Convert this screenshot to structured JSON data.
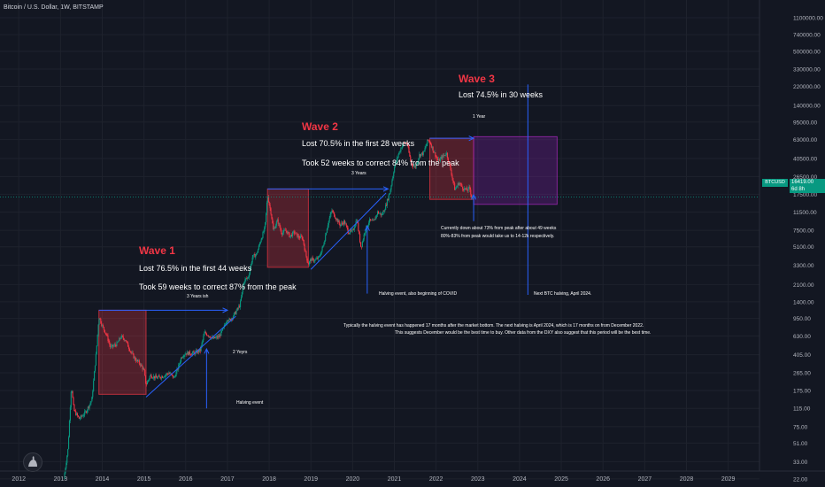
{
  "header": {
    "title": "Bitcoin / U.S. Dollar, 1W, BITSTAMP"
  },
  "price_badge": {
    "symbol": "BTCUSD",
    "price": "16419.00",
    "countdown": "6d 8h"
  },
  "annotations": {
    "wave1": {
      "title": "Wave 1",
      "line1": "Lost 76.5% in the first 44 weeks",
      "line2": "Took 59 weeks to correct 87% from the peak",
      "span_label": "3 Years ish",
      "trend_label": "2 Yeyrs",
      "event_label": "Halving event"
    },
    "wave2": {
      "title": "Wave 2",
      "line1": "Lost 70.5% in the first 28 weeks",
      "line2": "Took 52 weeks to correct 84% from the peak",
      "span_label": "3 Years",
      "event_label": "Halving event, also beginning of COVID"
    },
    "wave3": {
      "title": "Wave 3",
      "line1": "Lost 74.5% in 30 weeks",
      "span_label": "1 Year"
    },
    "current_note_1": "Currently down about 73% from peak after about 49 weeks",
    "current_note_2": "80%-83% from peak would take us to 14-12k respectively.",
    "next_halving": "Next BTC halving, April 2024.",
    "summary_1": "Typically the halving event has happened 17 months after the market bottom. The next halving is April 2024, which is 17 months on from December 2022.",
    "summary_2": "This suggests December would be the best time to buy. Other data from the DXY also suggest that this period will be the best time."
  },
  "colors": {
    "background": "#131722",
    "up": "#089981",
    "down": "#f23645",
    "wave_box": "#f23645",
    "projection_box": "#7b1fa2",
    "arrow": "#2962ff",
    "price_line": "#089981",
    "grid": "#1e222d"
  },
  "chart_data": {
    "type": "candlestick",
    "title": "Bitcoin / U.S. Dollar, 1W, BITSTAMP",
    "y_scale": "log",
    "ylim": [
      27,
      1100000
    ],
    "xlim": [
      2011.55,
      2029.75
    ],
    "x_ticks": [
      "2012",
      "2013",
      "2014",
      "2015",
      "2016",
      "2017",
      "2018",
      "2019",
      "2020",
      "2021",
      "2022",
      "2023",
      "2024",
      "2025",
      "2026",
      "2027",
      "2028",
      "2029"
    ],
    "y_ticks": [
      "1100000.00",
      "740000.00",
      "500000.00",
      "330000.00",
      "220000.00",
      "140000.00",
      "95000.00",
      "63000.00",
      "40500.00",
      "26500.00",
      "17500.00",
      "11500.00",
      "7500.00",
      "5100.00",
      "3300.00",
      "2100.00",
      "1400.00",
      "950.00",
      "630.00",
      "405.00",
      "265.00",
      "175.00",
      "115.00",
      "75.00",
      "51.00",
      "33.00",
      "22.00"
    ],
    "last_price": 16419,
    "close_path": [
      [
        2013.08,
        22
      ],
      [
        2013.18,
        45
      ],
      [
        2013.26,
        200
      ],
      [
        2013.32,
        110
      ],
      [
        2013.45,
        90
      ],
      [
        2013.6,
        105
      ],
      [
        2013.75,
        140
      ],
      [
        2013.86,
        450
      ],
      [
        2013.92,
        1000
      ],
      [
        2014.0,
        800
      ],
      [
        2014.1,
        650
      ],
      [
        2014.2,
        480
      ],
      [
        2014.35,
        520
      ],
      [
        2014.45,
        620
      ],
      [
        2014.55,
        580
      ],
      [
        2014.7,
        420
      ],
      [
        2014.8,
        360
      ],
      [
        2014.9,
        330
      ],
      [
        2015.0,
        280
      ],
      [
        2015.05,
        200
      ],
      [
        2015.15,
        250
      ],
      [
        2015.3,
        235
      ],
      [
        2015.45,
        245
      ],
      [
        2015.6,
        265
      ],
      [
        2015.72,
        235
      ],
      [
        2015.82,
        300
      ],
      [
        2015.9,
        390
      ],
      [
        2016.0,
        420
      ],
      [
        2016.2,
        420
      ],
      [
        2016.35,
        450
      ],
      [
        2016.45,
        680
      ],
      [
        2016.55,
        640
      ],
      [
        2016.65,
        590
      ],
      [
        2016.8,
        620
      ],
      [
        2016.9,
        740
      ],
      [
        2017.0,
        950
      ],
      [
        2017.05,
        900
      ],
      [
        2017.2,
        1100
      ],
      [
        2017.3,
        1300
      ],
      [
        2017.4,
        2300
      ],
      [
        2017.5,
        2500
      ],
      [
        2017.6,
        4000
      ],
      [
        2017.7,
        4300
      ],
      [
        2017.8,
        6000
      ],
      [
        2017.9,
        8000
      ],
      [
        2017.96,
        17000
      ],
      [
        2018.0,
        14000
      ],
      [
        2018.05,
        11000
      ],
      [
        2018.1,
        7500
      ],
      [
        2018.2,
        9500
      ],
      [
        2018.3,
        7000
      ],
      [
        2018.4,
        7500
      ],
      [
        2018.5,
        6500
      ],
      [
        2018.6,
        7200
      ],
      [
        2018.7,
        6400
      ],
      [
        2018.8,
        6300
      ],
      [
        2018.88,
        4200
      ],
      [
        2018.94,
        3400
      ],
      [
        2019.0,
        3800
      ],
      [
        2019.1,
        3700
      ],
      [
        2019.2,
        4000
      ],
      [
        2019.3,
        5300
      ],
      [
        2019.4,
        8500
      ],
      [
        2019.5,
        12000
      ],
      [
        2019.6,
        10000
      ],
      [
        2019.7,
        8500
      ],
      [
        2019.8,
        9200
      ],
      [
        2019.9,
        7200
      ],
      [
        2020.0,
        7300
      ],
      [
        2020.1,
        9800
      ],
      [
        2020.2,
        5000
      ],
      [
        2020.3,
        7500
      ],
      [
        2020.4,
        9400
      ],
      [
        2020.5,
        9100
      ],
      [
        2020.6,
        11500
      ],
      [
        2020.7,
        10700
      ],
      [
        2020.8,
        13500
      ],
      [
        2020.9,
        19000
      ],
      [
        2021.0,
        33000
      ],
      [
        2021.1,
        45000
      ],
      [
        2021.2,
        57000
      ],
      [
        2021.3,
        59000
      ],
      [
        2021.4,
        36000
      ],
      [
        2021.5,
        33000
      ],
      [
        2021.6,
        44000
      ],
      [
        2021.7,
        46000
      ],
      [
        2021.8,
        62000
      ],
      [
        2021.85,
        60000
      ],
      [
        2021.95,
        47000
      ],
      [
        2022.05,
        38000
      ],
      [
        2022.15,
        42000
      ],
      [
        2022.25,
        46000
      ],
      [
        2022.35,
        31000
      ],
      [
        2022.45,
        19500
      ],
      [
        2022.55,
        23000
      ],
      [
        2022.65,
        20000
      ],
      [
        2022.75,
        19200
      ],
      [
        2022.8,
        20500
      ],
      [
        2022.85,
        16500
      ],
      [
        2022.9,
        16419
      ]
    ],
    "wave_boxes": [
      {
        "name": "Wave 1",
        "x": [
          2013.92,
          2015.05
        ],
        "y": [
          160,
          1150
        ]
      },
      {
        "name": "Wave 2",
        "x": [
          2017.96,
          2018.94
        ],
        "y": [
          3150,
          19800
        ]
      },
      {
        "name": "Wave 3",
        "x": [
          2021.85,
          2022.9
        ],
        "y": [
          15500,
          65000
        ]
      }
    ],
    "projection_box": {
      "x": [
        2022.9,
        2024.9
      ],
      "y": [
        13800,
        67500
      ]
    },
    "next_halving_x": 2024.2
  }
}
